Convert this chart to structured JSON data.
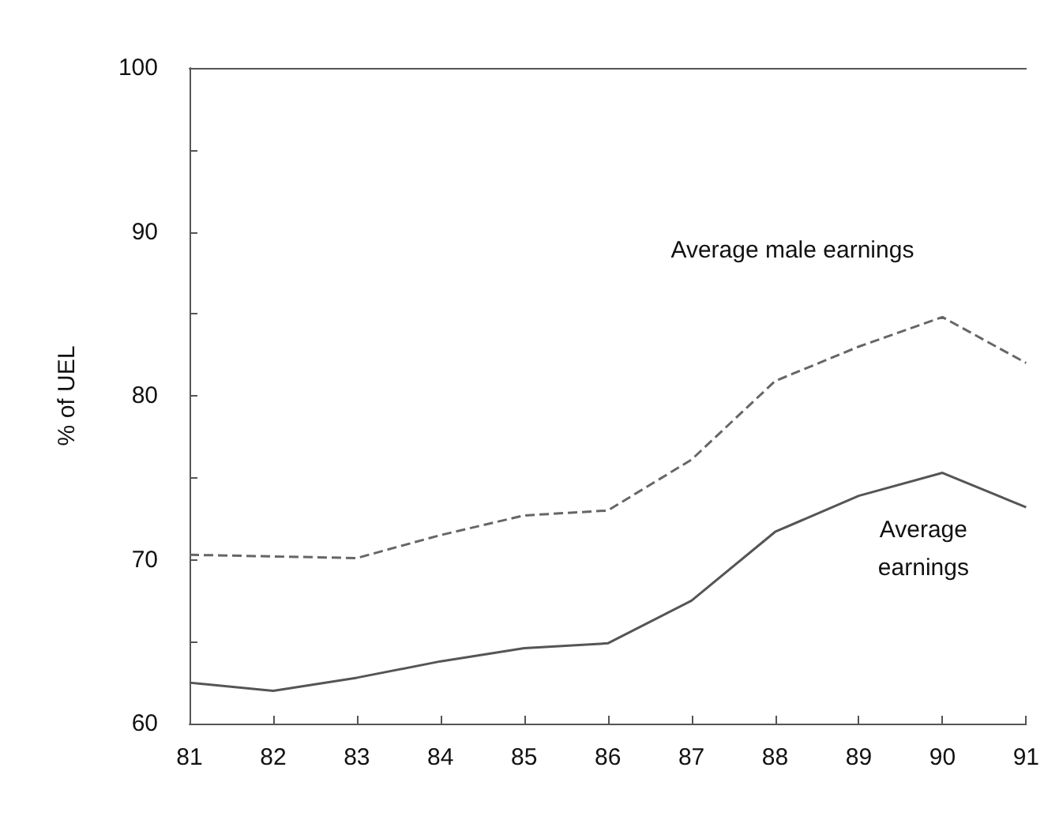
{
  "chart_data": {
    "type": "line",
    "ylabel": "% of UEL",
    "categories": [
      "81",
      "82",
      "83",
      "84",
      "85",
      "86",
      "87",
      "88",
      "89",
      "90",
      "91"
    ],
    "series": [
      {
        "name": "Average male earnings",
        "color": "#666666",
        "line_style": "dashed",
        "values": [
          70.3,
          70.2,
          70.1,
          71.5,
          72.7,
          73.0,
          76.1,
          80.9,
          83.0,
          84.8,
          82.0
        ]
      },
      {
        "name": "Average\nearnings",
        "color": "#555555",
        "line_style": "solid",
        "values": [
          62.5,
          62.0,
          62.8,
          63.8,
          64.6,
          64.9,
          67.5,
          71.7,
          73.9,
          75.3,
          73.2
        ]
      }
    ],
    "ylim": [
      60,
      100
    ],
    "yticks": [
      60,
      {
        "value": 65,
        "label": null
      },
      70,
      {
        "value": 75,
        "label": null
      },
      80,
      {
        "value": 85,
        "label": null
      },
      90,
      {
        "value": 95,
        "label": null
      },
      100
    ],
    "grid": false,
    "marker": "none"
  }
}
